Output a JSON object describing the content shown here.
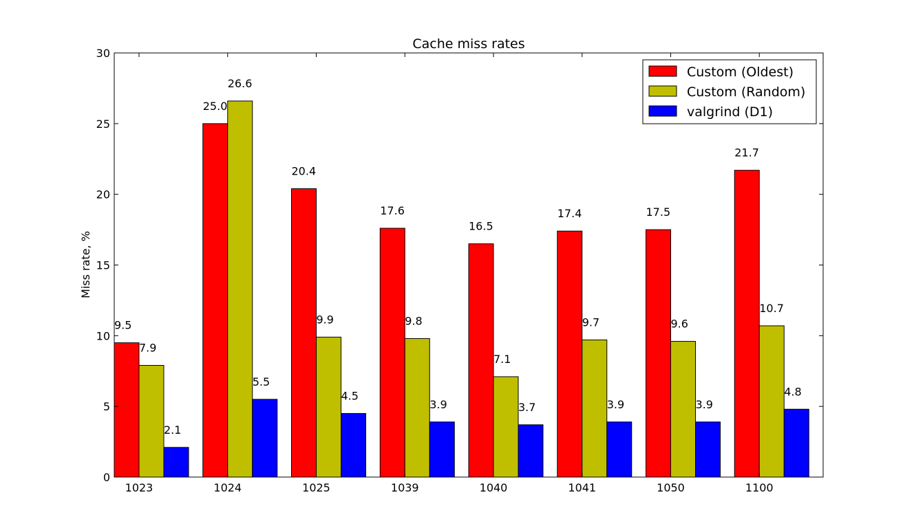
{
  "chart_data": {
    "type": "bar",
    "title": "Cache miss rates",
    "xlabel": "",
    "ylabel": "Miss rate, %",
    "ylim": [
      0,
      30
    ],
    "yticks": [
      "0",
      "5",
      "10",
      "15",
      "20",
      "25",
      "30"
    ],
    "categories": [
      "1023",
      "1024",
      "1025",
      "1039",
      "1040",
      "1041",
      "1050",
      "1100"
    ],
    "legend_position": "top-right",
    "series": [
      {
        "name": "Custom (Oldest)",
        "color": "#ff0000",
        "values": [
          9.5,
          25.0,
          20.4,
          17.6,
          16.5,
          17.4,
          17.5,
          21.7
        ],
        "labels": [
          "9.5",
          "25.0",
          "20.4",
          "17.6",
          "16.5",
          "17.4",
          "17.5",
          "21.7"
        ]
      },
      {
        "name": "Custom (Random)",
        "color": "#bfbf00",
        "values": [
          7.9,
          26.6,
          9.9,
          9.8,
          7.1,
          9.7,
          9.6,
          10.7
        ],
        "labels": [
          "7.9",
          "26.6",
          "9.9",
          "9.8",
          "7.1",
          "9.7",
          "9.6",
          "10.7"
        ]
      },
      {
        "name": "valgrind (D1)",
        "color": "#0000ff",
        "values": [
          2.1,
          5.5,
          4.5,
          3.9,
          3.7,
          3.9,
          3.9,
          4.8
        ],
        "labels": [
          "2.1",
          "5.5",
          "4.5",
          "3.9",
          "3.7",
          "3.9",
          "3.9",
          "4.8"
        ]
      }
    ]
  }
}
